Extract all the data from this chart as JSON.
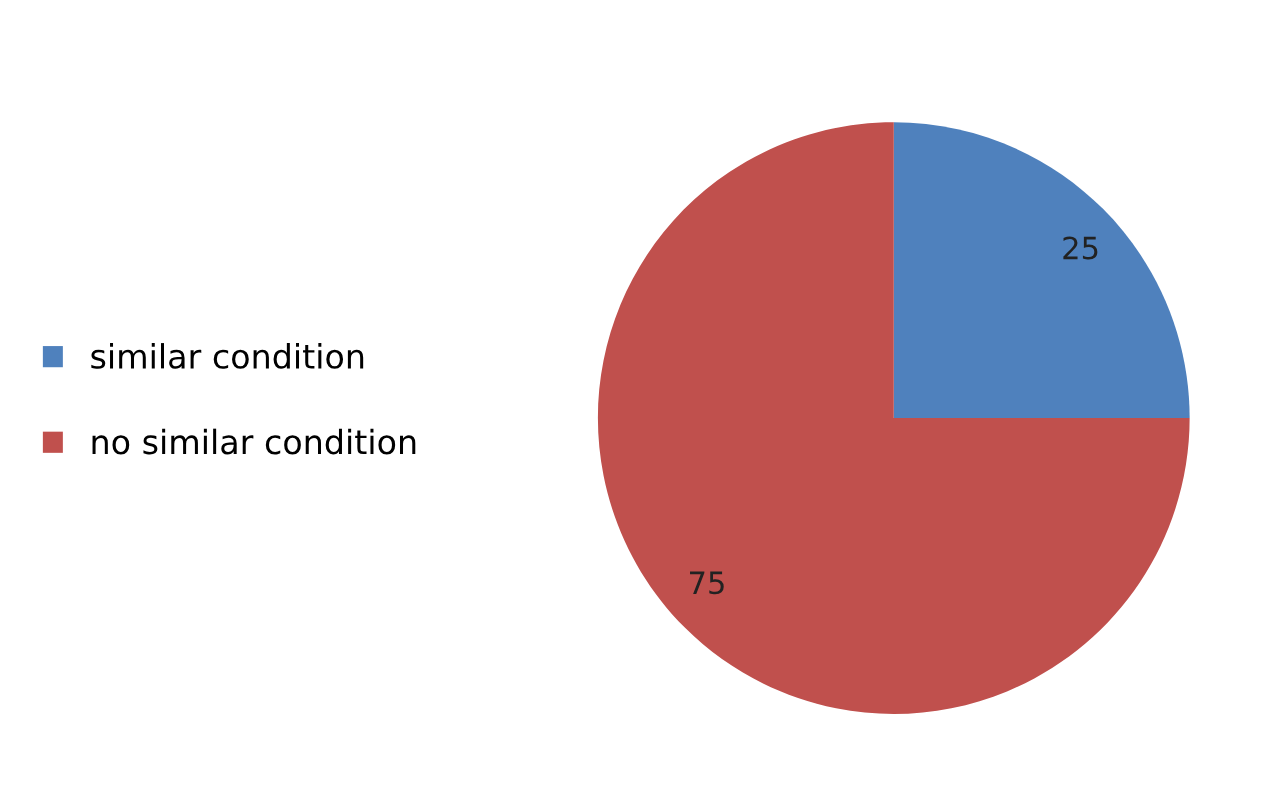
{
  "chart_data": {
    "type": "pie",
    "categories": [
      "similar condition",
      "no similar condition"
    ],
    "values": [
      25,
      75
    ],
    "colors": [
      "#4f81bd",
      "#c0504d"
    ],
    "data_labels": true,
    "legend": "left"
  }
}
